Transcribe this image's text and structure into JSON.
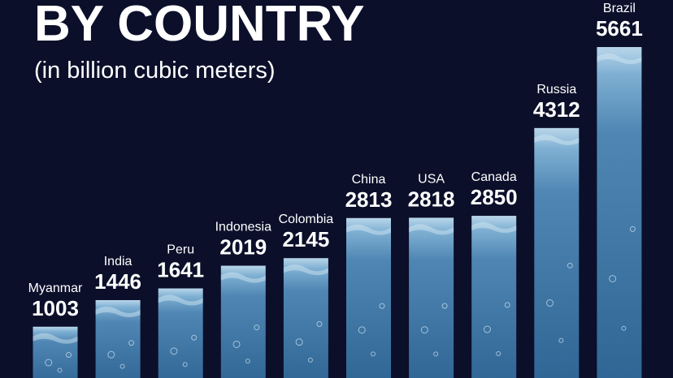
{
  "chart_data": {
    "type": "bar",
    "title": "BY COUNTRY",
    "subtitle": "(in billion cubic meters)",
    "categories": [
      "Myanmar",
      "India",
      "Peru",
      "Indonesia",
      "Colombia",
      "China",
      "USA",
      "Canada",
      "Russia",
      "Brazil"
    ],
    "values": [
      1003,
      1446,
      1641,
      2019,
      2145,
      2813,
      2818,
      2850,
      4312,
      5661
    ],
    "color": "#5d93bd"
  }
}
